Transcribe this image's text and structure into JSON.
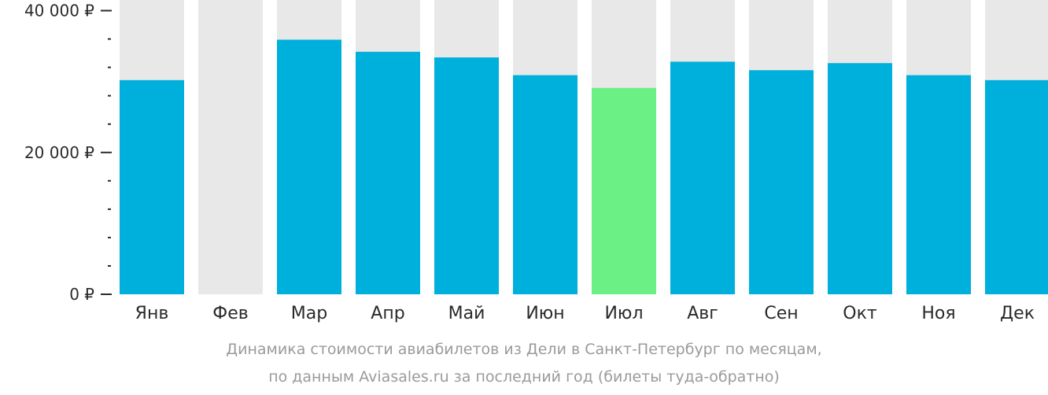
{
  "chart_data": {
    "type": "bar",
    "categories": [
      "Янв",
      "Фев",
      "Мар",
      "Апр",
      "Май",
      "Июн",
      "Июл",
      "Авг",
      "Сен",
      "Окт",
      "Ноя",
      "Дек"
    ],
    "values": [
      30200,
      null,
      35900,
      34200,
      33400,
      30900,
      29100,
      32800,
      31600,
      32600,
      30900,
      30200
    ],
    "ylim": [
      0,
      41500
    ],
    "yticks": [
      0,
      20000,
      40000
    ],
    "ytick_labels": [
      "0 ₽",
      "20 000 ₽",
      "40 000 ₽"
    ],
    "minor_tick_step": 4000,
    "highlight_index": 6,
    "colors": {
      "bar": "#00b0dc",
      "highlight": "#6bf085",
      "background_column": "#e8e8e8",
      "axis_text": "#2a2a2a",
      "caption": "#9a9a9a"
    }
  },
  "caption": {
    "line1": "Динамика стоимости авиабилетов из Дели в Санкт-Петербург по месяцам,",
    "line2": "по данным Aviasales.ru за последний год (билеты туда-обратно)"
  }
}
